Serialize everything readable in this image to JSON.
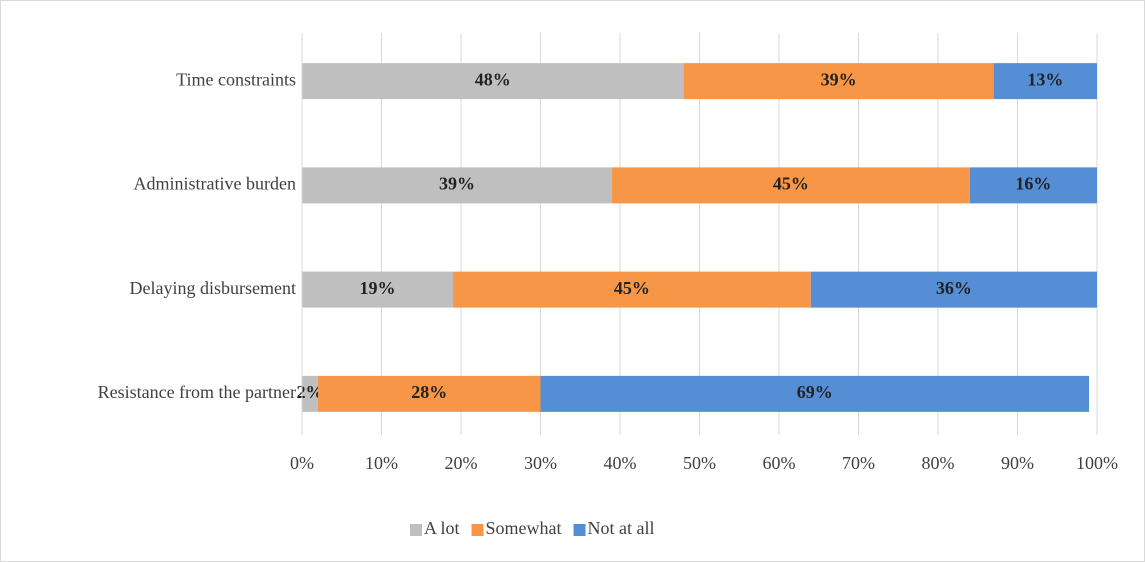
{
  "chart_data": {
    "type": "stacked-bar-horizontal",
    "categories": [
      "Time constraints",
      "Administrative burden",
      "Delaying disbursement",
      "Resistance from the partner"
    ],
    "series": [
      {
        "name": "A lot",
        "color": "#bfbfbf",
        "values": [
          48,
          39,
          19,
          2
        ],
        "value_labels": [
          "48%",
          "39%",
          "19%",
          "2%"
        ]
      },
      {
        "name": "Somewhat",
        "color": "#f79646",
        "values": [
          39,
          45,
          45,
          28
        ],
        "value_labels": [
          "39%",
          "45%",
          "45%",
          "28%"
        ]
      },
      {
        "name": "Not at all",
        "color": "#558ed5",
        "values": [
          13,
          16,
          36,
          69
        ],
        "value_labels": [
          "13%",
          "16%",
          "36%",
          "69%"
        ]
      }
    ],
    "xlim": [
      0,
      100
    ],
    "xticks": [
      {
        "value": 0,
        "label": "0%"
      },
      {
        "value": 10,
        "label": "10%"
      },
      {
        "value": 20,
        "label": "20%"
      },
      {
        "value": 30,
        "label": "30%"
      },
      {
        "value": 40,
        "label": "40%"
      },
      {
        "value": 50,
        "label": "50%"
      },
      {
        "value": 60,
        "label": "60%"
      },
      {
        "value": 70,
        "label": "70%"
      },
      {
        "value": 80,
        "label": "80%"
      },
      {
        "value": 90,
        "label": "90%"
      },
      {
        "value": 100,
        "label": "100%"
      }
    ],
    "grid": true,
    "legend": "bottom"
  }
}
